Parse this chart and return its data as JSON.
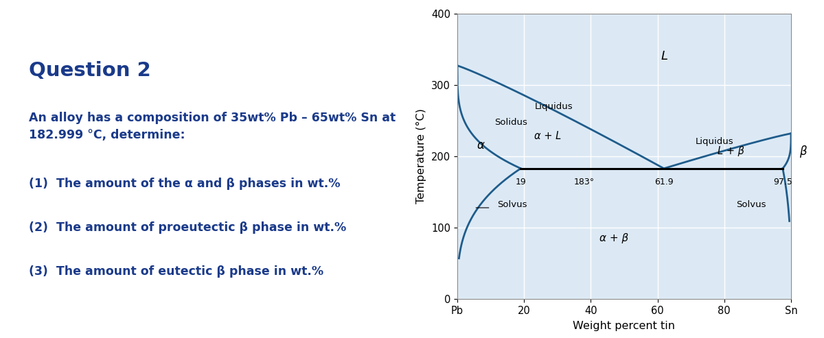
{
  "text_color": "#1a3a8a",
  "bg_color": "#ffffff",
  "diagram_bg": "#dce9f5",
  "line_color": "#1f5c8b",
  "question_title": "Question 2",
  "question_body": "An alloy has a composition of 35wt% Pb – 65wt% Sn at\n182.999 °C, determine:",
  "items": [
    "(1)  The amount of the α and β phases in wt.%",
    "(2)  The amount of proeutectic β phase in wt.%",
    "(3)  The amount of eutectic β phase in wt.%"
  ],
  "xlabel": "Weight percent tin",
  "ylabel": "Temperature (°C)",
  "xlim": [
    0,
    100
  ],
  "ylim": [
    0,
    400
  ],
  "xticks": [
    0,
    20,
    40,
    60,
    80,
    100
  ],
  "xticklabels": [
    "Pb",
    "20",
    "40",
    "60",
    "80",
    "Sn"
  ],
  "yticks": [
    0,
    100,
    200,
    300,
    400
  ],
  "eutectic_temp": 183,
  "eutectic_comp": 61.9,
  "alpha_eutectic_comp": 19,
  "beta_eutectic_comp": 97.5,
  "Pb_melt": 327,
  "Sn_melt": 232,
  "label_L": "L",
  "label_alpha_L": "α + L",
  "label_L_beta": "L + β",
  "label_alpha_beta": "α + β",
  "label_alpha": "α",
  "label_beta": "β",
  "label_liquidus_left": "Liquidus",
  "label_solidus": "Solidus",
  "label_liquidus_right": "Liquidus",
  "label_solvus_left": "Solvus",
  "label_solvus_right": "Solvus",
  "annotation_19": "19",
  "annotation_183": "183°",
  "annotation_619": "61.9",
  "annotation_975": "97.5"
}
